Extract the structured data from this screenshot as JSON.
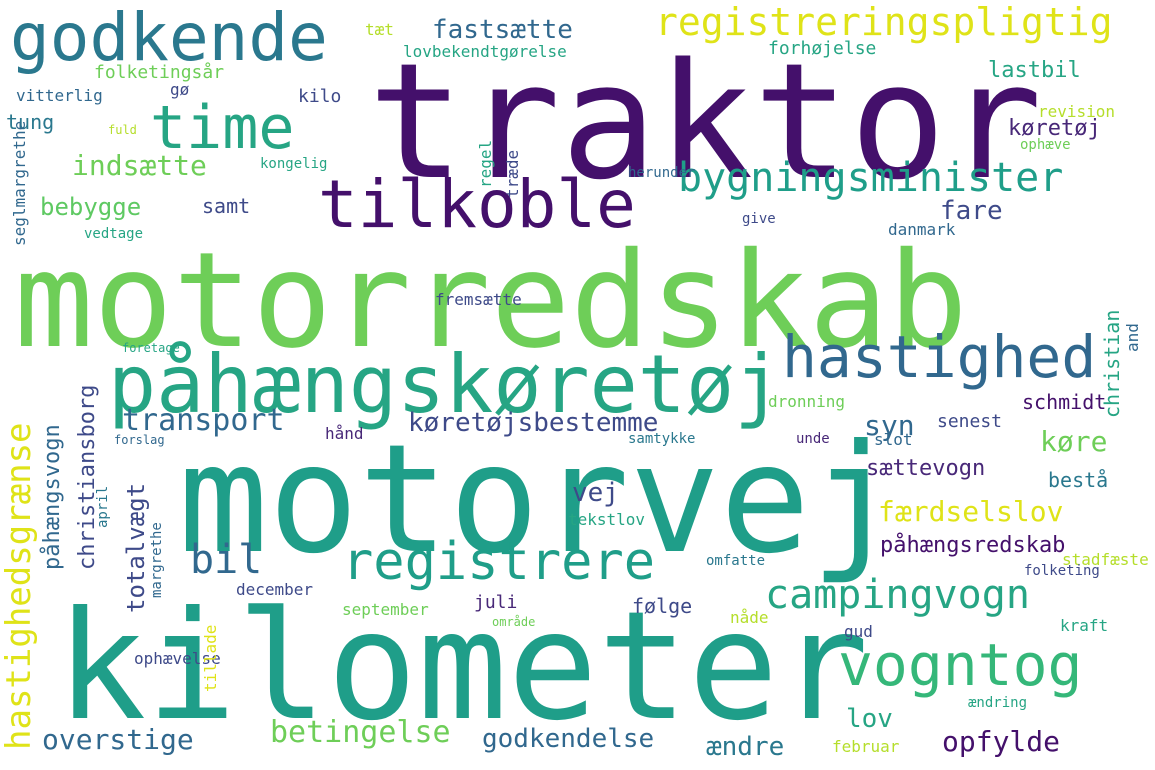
{
  "palette": {
    "dark_purple": "#44106b",
    "purple": "#482878",
    "indigo": "#3e4a89",
    "blue": "#31688e",
    "teal_blue": "#26828e",
    "teal": "#1f9e89",
    "green_teal": "#35b779",
    "green": "#6ece58",
    "lime": "#b5de2b",
    "yellow": "#dfe318"
  },
  "words": [
    {
      "text": "motorredskab",
      "color": "#6ece58"
    },
    {
      "text": "traktor",
      "color": "#44106b"
    },
    {
      "text": "motorvej",
      "color": "#1f9e89"
    },
    {
      "text": "kilometer",
      "color": "#1f9e89"
    },
    {
      "text": "påhængskøretøj",
      "color": "#26a584"
    },
    {
      "text": "godkende",
      "color": "#2a788e"
    },
    {
      "text": "tilkoble",
      "color": "#44106b"
    },
    {
      "text": "time",
      "color": "#26a584"
    },
    {
      "text": "hastighed",
      "color": "#31688e"
    },
    {
      "text": "registrere",
      "color": "#1f9e89"
    },
    {
      "text": "vogntog",
      "color": "#35b779"
    },
    {
      "text": "bygningsminister",
      "color": "#1f9e89"
    },
    {
      "text": "registreringspligtig",
      "color": "#dfe318"
    },
    {
      "text": "campingvogn",
      "color": "#26a584"
    },
    {
      "text": "bil",
      "color": "#31688e"
    },
    {
      "text": "hastighedsgrænse",
      "color": "#dfe318"
    },
    {
      "text": "transport",
      "color": "#31688e"
    },
    {
      "text": "køretøjsbestemme",
      "color": "#3e4a89"
    },
    {
      "text": "indsætte",
      "color": "#6ece58"
    },
    {
      "text": "fastsætte",
      "color": "#31688e"
    },
    {
      "text": "betingelse",
      "color": "#6ece58"
    },
    {
      "text": "godkendelse",
      "color": "#31688e"
    },
    {
      "text": "overstige",
      "color": "#31688e"
    },
    {
      "text": "opfylde",
      "color": "#44106b"
    },
    {
      "text": "færdselslov",
      "color": "#dfe318"
    },
    {
      "text": "påhængsredskab",
      "color": "#44106b"
    },
    {
      "text": "bebygge",
      "color": "#5ec962"
    },
    {
      "text": "lastbil",
      "color": "#26a584"
    },
    {
      "text": "køretøj",
      "color": "#482878"
    },
    {
      "text": "fare",
      "color": "#3e4a89"
    },
    {
      "text": "samt",
      "color": "#3e4a89"
    },
    {
      "text": "syn",
      "color": "#31688e"
    },
    {
      "text": "køre",
      "color": "#6ece58"
    },
    {
      "text": "sættevogn",
      "color": "#482878"
    },
    {
      "text": "vej",
      "color": "#3e4a89"
    },
    {
      "text": "lov",
      "color": "#26a584"
    },
    {
      "text": "ændre",
      "color": "#2a788e"
    },
    {
      "text": "følge",
      "color": "#3e4a89"
    },
    {
      "text": "bestå",
      "color": "#2a788e"
    },
    {
      "text": "schmidt",
      "color": "#44106b"
    },
    {
      "text": "senest",
      "color": "#3e4a89"
    },
    {
      "text": "totalvægt",
      "color": "#3e4a89"
    },
    {
      "text": "påhængsvogn",
      "color": "#31688e"
    },
    {
      "text": "christiansborg",
      "color": "#3e4a89"
    },
    {
      "text": "christian",
      "color": "#26a584"
    },
    {
      "text": "folketingsår",
      "color": "#6ece58"
    },
    {
      "text": "tung",
      "color": "#2a788e"
    },
    {
      "text": "kilo",
      "color": "#3e4a89"
    },
    {
      "text": "forhøjelse",
      "color": "#26a584"
    },
    {
      "text": "lovbekendtgørelse",
      "color": "#26a584"
    },
    {
      "text": "tæt",
      "color": "#b5de2b"
    },
    {
      "text": "vitterlig",
      "color": "#31688e"
    },
    {
      "text": "gø",
      "color": "#3e4a89"
    },
    {
      "text": "revision",
      "color": "#b5de2b"
    },
    {
      "text": "fuld",
      "color": "#b5de2b"
    },
    {
      "text": "kongelig",
      "color": "#26a584"
    },
    {
      "text": "herunder",
      "color": "#31688e"
    },
    {
      "text": "ophæve",
      "color": "#6ece58"
    },
    {
      "text": "vedtage",
      "color": "#26a584"
    },
    {
      "text": "give",
      "color": "#3e4a89"
    },
    {
      "text": "danmark",
      "color": "#31688e"
    },
    {
      "text": "fremsætte",
      "color": "#3e4a89"
    },
    {
      "text": "foretage",
      "color": "#26a584"
    },
    {
      "text": "dronning",
      "color": "#6ece58"
    },
    {
      "text": "hånd",
      "color": "#482878"
    },
    {
      "text": "samtykke",
      "color": "#2a788e"
    },
    {
      "text": "unde",
      "color": "#482878"
    },
    {
      "text": "slot",
      "color": "#31688e"
    },
    {
      "text": "forslag",
      "color": "#31688e"
    },
    {
      "text": "tekstlov",
      "color": "#26a584"
    },
    {
      "text": "omfatte",
      "color": "#2a788e"
    },
    {
      "text": "stadfæste",
      "color": "#b5de2b"
    },
    {
      "text": "folketing",
      "color": "#3e4a89"
    },
    {
      "text": "december",
      "color": "#3e4a89"
    },
    {
      "text": "september",
      "color": "#6ece58"
    },
    {
      "text": "juli",
      "color": "#482878"
    },
    {
      "text": "nåde",
      "color": "#b5de2b"
    },
    {
      "text": "gud",
      "color": "#3e4a89"
    },
    {
      "text": "kraft",
      "color": "#26a584"
    },
    {
      "text": "område",
      "color": "#6ece58"
    },
    {
      "text": "ophævelse",
      "color": "#3e4a89"
    },
    {
      "text": "ændring",
      "color": "#26a584"
    },
    {
      "text": "februar",
      "color": "#b5de2b"
    },
    {
      "text": "seglmargrethe",
      "color": "#31688e"
    },
    {
      "text": "regel",
      "color": "#26a584"
    },
    {
      "text": "træde",
      "color": "#3e4a89"
    },
    {
      "text": "and",
      "color": "#31688e"
    },
    {
      "text": "april",
      "color": "#2a788e"
    },
    {
      "text": "margrethe",
      "color": "#31688e"
    },
    {
      "text": "tillade",
      "color": "#dfe318"
    }
  ]
}
